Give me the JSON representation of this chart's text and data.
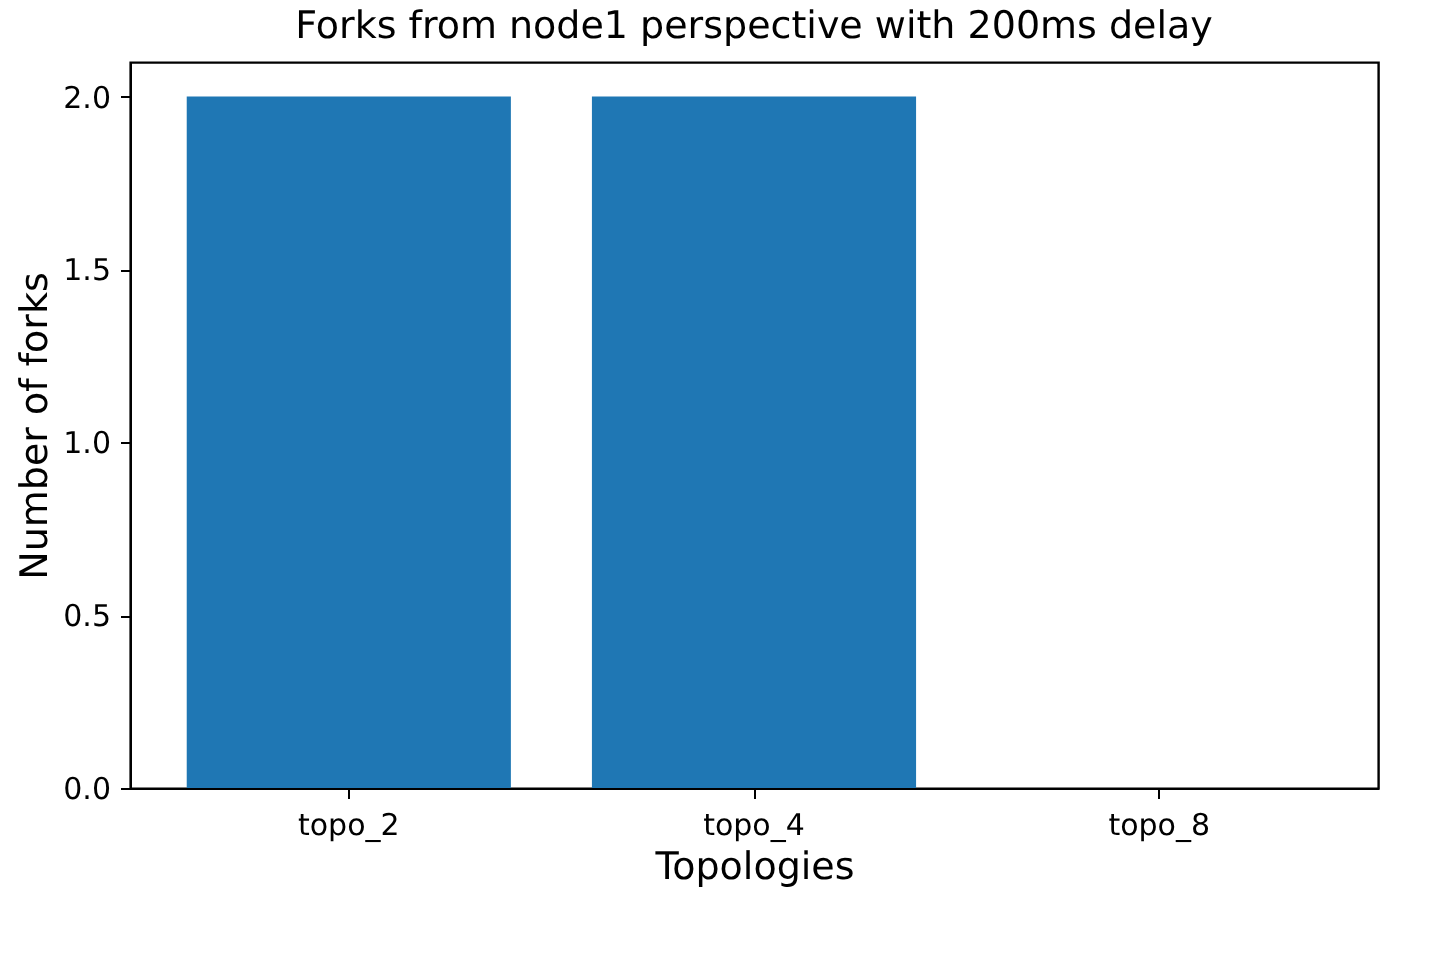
{
  "chart_data": {
    "type": "bar",
    "title": "Forks from node1 perspective with 200ms delay",
    "xlabel": "Topologies",
    "ylabel": "Number of forks",
    "categories": [
      "topo_2",
      "topo_4",
      "topo_8"
    ],
    "values": [
      2,
      2,
      0
    ],
    "color": "#1f77b4",
    "ylim": [
      0,
      2.1
    ],
    "yticks": [
      {
        "value": 0,
        "label": "0.0"
      },
      0.5,
      {
        "value": 1,
        "label": "1.0"
      },
      1.5,
      {
        "value": 2,
        "label": "2.0"
      }
    ],
    "grid": false
  }
}
